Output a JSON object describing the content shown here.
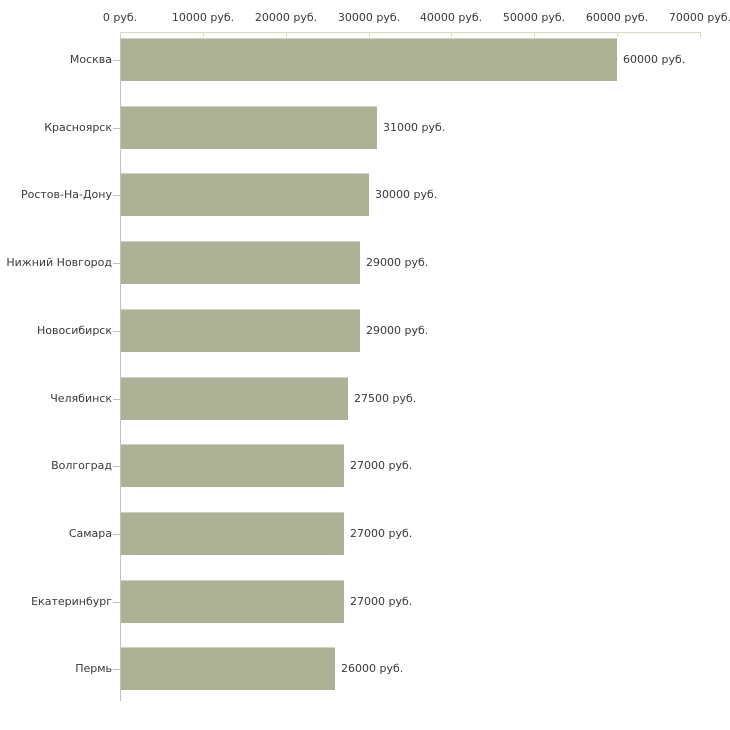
{
  "chart_data": {
    "type": "bar",
    "orientation": "horizontal",
    "title": "",
    "xlabel": "",
    "ylabel": "",
    "unit": "руб.",
    "categories": [
      "Москва",
      "Красноярск",
      "Ростов-На-Дону",
      "Нижний Новгород",
      "Новосибирск",
      "Челябинск",
      "Волгоград",
      "Самара",
      "Екатеринбург",
      "Пермь"
    ],
    "values": [
      60000,
      31000,
      30000,
      29000,
      29000,
      27500,
      27000,
      27000,
      27000,
      26000
    ],
    "value_labels": [
      "60000 руб.",
      "31000 руб.",
      "30000 руб.",
      "29000 руб.",
      "29000 руб.",
      "27500 руб.",
      "27000 руб.",
      "27000 руб.",
      "27000 руб.",
      "26000 руб."
    ],
    "x_ticks": [
      0,
      10000,
      20000,
      30000,
      40000,
      50000,
      60000,
      70000
    ],
    "x_tick_labels": [
      "0 руб.",
      "10000 руб.",
      "20000 руб.",
      "30000 руб.",
      "40000 руб.",
      "50000 руб.",
      "60000 руб.",
      "70000 руб."
    ],
    "xlim": [
      0,
      70000
    ],
    "grid": false,
    "legend": false,
    "colors": {
      "bar_fill": "#adb296",
      "bar_top_edge": "#cfd2bf",
      "value_axis_line": "#d9dabc",
      "category_axis_line": "#c2c2c2",
      "category_tick": "#c4c4b4",
      "text": "#3a3a3a"
    }
  }
}
